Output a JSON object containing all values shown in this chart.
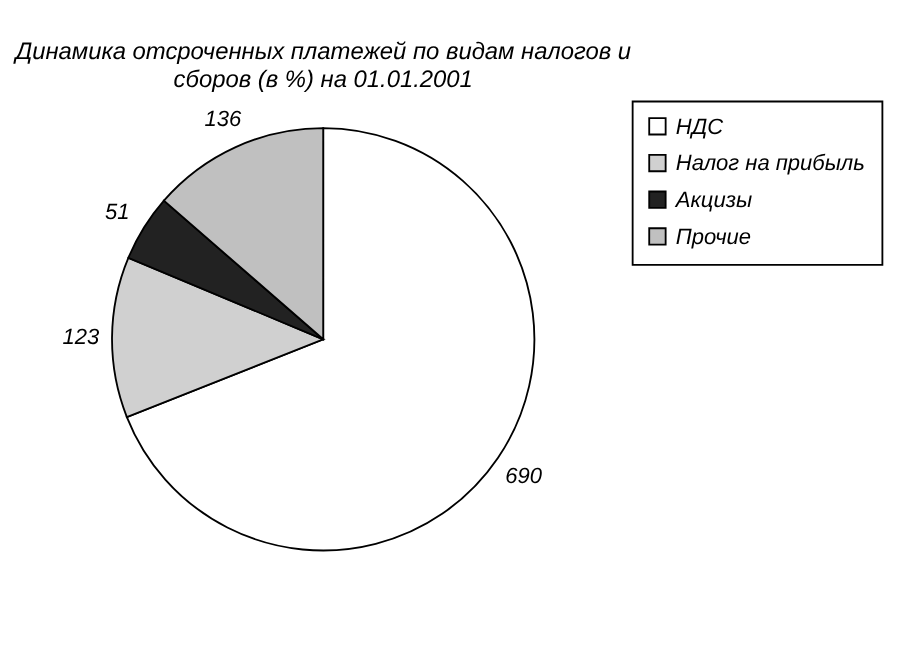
{
  "chart_data": {
    "type": "pie",
    "title": "Динамика отсроченных платежей по видам налогов и сборов (в %) на 01.01.2001",
    "categories": [
      "НДС",
      "Налог на прибыль",
      "Акцизы",
      "Прочие"
    ],
    "values": [
      690,
      123,
      51,
      136
    ],
    "colors": [
      "#ffffff",
      "#d0d0d0",
      "#222222",
      "#c0c0c0"
    ],
    "data_labels": true,
    "legend": "right"
  }
}
